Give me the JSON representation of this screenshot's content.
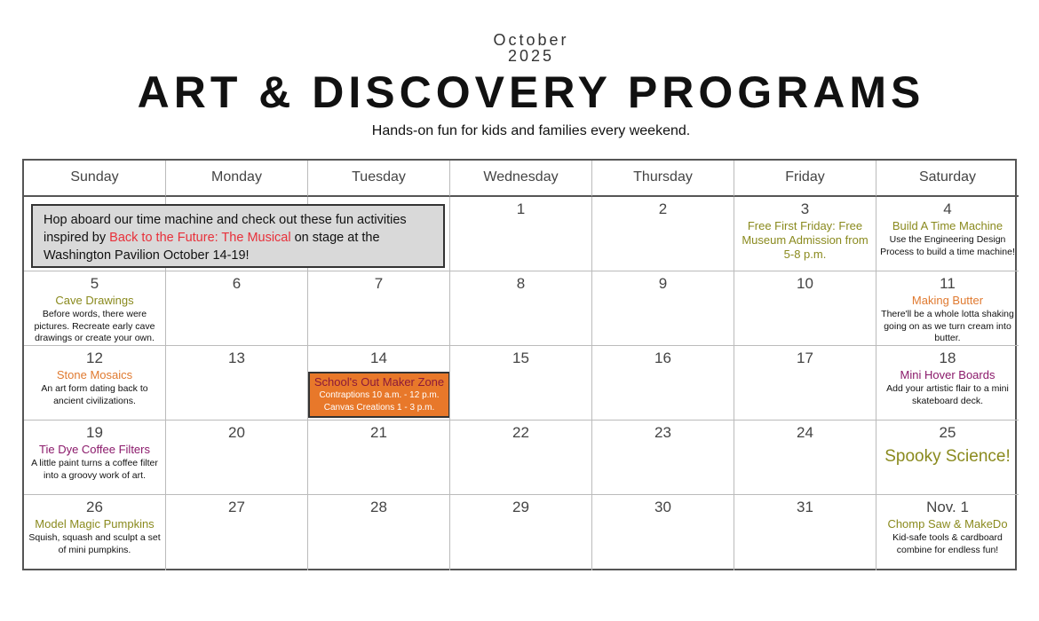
{
  "header": {
    "month": "October",
    "year": "2025",
    "title": "ART & DISCOVERY PROGRAMS",
    "subtitle": "Hands-on fun for kids and families every weekend."
  },
  "colors": {
    "olive": "#8a8a1e",
    "orange": "#e07a30",
    "magenta": "#8b1a6b",
    "red": "#e8303a",
    "box_orange": "#e8782a"
  },
  "days_of_week": [
    "Sunday",
    "Monday",
    "Tuesday",
    "Wednesday",
    "Thursday",
    "Friday",
    "Saturday"
  ],
  "banner": {
    "pre": "Hop aboard our time machine and check out these fun activities inspired by ",
    "highlight": "Back to the Future: The Musical",
    "post": " on stage at the Washington Pavilion October 14-19!"
  },
  "special": {
    "title": "School's Out Maker Zone",
    "line1": "Contraptions 10 a.m. - 12 p.m.",
    "line2": "Canvas Creations 1 - 3 p.m."
  },
  "weeks": [
    [
      {
        "day": ""
      },
      {
        "day": ""
      },
      {
        "day": ""
      },
      {
        "day": "1"
      },
      {
        "day": "2"
      },
      {
        "day": "3",
        "title": "Free First Friday: Free Museum Admission from 5-8 p.m.",
        "color": "olive"
      },
      {
        "day": "4",
        "title": "Build A Time Machine",
        "color": "olive",
        "desc": "Use the Engineering Design Process to build a time machine!"
      }
    ],
    [
      {
        "day": "5",
        "title": "Cave Drawings",
        "color": "olive",
        "desc": "Before words, there were pictures.  Recreate early cave drawings or create your own."
      },
      {
        "day": "6"
      },
      {
        "day": "7"
      },
      {
        "day": "8"
      },
      {
        "day": "9"
      },
      {
        "day": "10"
      },
      {
        "day": "11",
        "title": "Making Butter",
        "color": "orange",
        "desc": "There'll be a whole lotta shaking going on as we turn cream into butter."
      }
    ],
    [
      {
        "day": "12",
        "title": "Stone Mosaics",
        "color": "orange",
        "desc": "An art form dating back to ancient civilizations."
      },
      {
        "day": "13"
      },
      {
        "day": "14"
      },
      {
        "day": "15"
      },
      {
        "day": "16"
      },
      {
        "day": "17"
      },
      {
        "day": "18",
        "title": "Mini Hover Boards",
        "color": "magenta",
        "desc": "Add your artistic flair to a mini skateboard deck."
      }
    ],
    [
      {
        "day": "19",
        "title": "Tie Dye Coffee Filters",
        "color": "magenta",
        "desc": "A little paint turns a coffee filter into a groovy work of art."
      },
      {
        "day": "20"
      },
      {
        "day": "21"
      },
      {
        "day": "22"
      },
      {
        "day": "23"
      },
      {
        "day": "24"
      },
      {
        "day": "25",
        "title": "Spooky Science!",
        "color": "olive",
        "big": true
      }
    ],
    [
      {
        "day": "26",
        "title": "Model Magic Pumpkins",
        "color": "olive",
        "desc": "Squish, squash and sculpt a set of mini pumpkins."
      },
      {
        "day": "27"
      },
      {
        "day": "28"
      },
      {
        "day": "29"
      },
      {
        "day": "30"
      },
      {
        "day": "31"
      },
      {
        "day": "Nov. 1",
        "title": "Chomp Saw & MakeDo",
        "color": "olive",
        "desc": "Kid-safe tools & cardboard combine for endless fun!"
      }
    ]
  ]
}
